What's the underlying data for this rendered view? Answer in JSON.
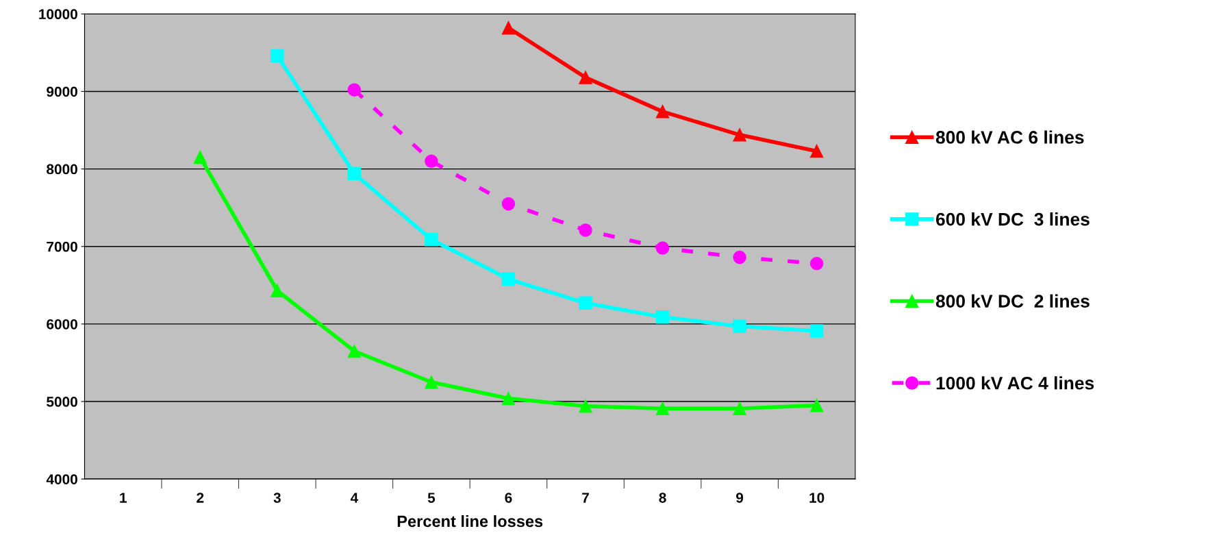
{
  "chart_data": {
    "type": "line",
    "xlabel": "Percent line losses",
    "categories": [
      "1",
      "2",
      "3",
      "4",
      "5",
      "6",
      "7",
      "8",
      "9",
      "10"
    ],
    "series": [
      {
        "name": "800 kV AC 6 lines",
        "color": "#ff0000",
        "marker": "triangle",
        "line_style": "solid",
        "values": [
          null,
          null,
          null,
          null,
          null,
          9820,
          9180,
          8740,
          8440,
          8230
        ]
      },
      {
        "name": "600 kV DC  3 lines",
        "color": "#00ffff",
        "marker": "square",
        "line_style": "solid",
        "values": [
          null,
          null,
          9460,
          7940,
          7090,
          6580,
          6270,
          6090,
          5970,
          5910
        ]
      },
      {
        "name": "800 kV DC  2 lines",
        "color": "#00ff00",
        "marker": "triangle",
        "line_style": "solid",
        "values": [
          null,
          8150,
          6430,
          5650,
          5250,
          5040,
          4940,
          4910,
          4910,
          4950
        ]
      },
      {
        "name": "1000 kV AC 4 lines",
        "color": "#ff00ff",
        "marker": "circle",
        "line_style": "dashed",
        "values": [
          null,
          null,
          null,
          9020,
          8100,
          7550,
          7210,
          6980,
          6860,
          6780
        ]
      }
    ],
    "ylim": [
      4000,
      10000
    ],
    "yticks": [
      4000,
      5000,
      6000,
      7000,
      8000,
      9000,
      10000
    ],
    "grid": "y",
    "legend": "right"
  }
}
